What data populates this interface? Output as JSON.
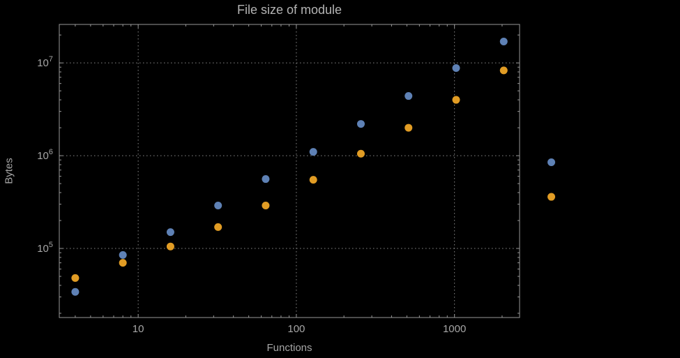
{
  "chart_data": {
    "type": "scatter",
    "scale": "log-log",
    "title": "File size of module",
    "xlabel": "Functions",
    "ylabel": "Bytes",
    "x": [
      4,
      8,
      16,
      32,
      64,
      128,
      256,
      512,
      1024,
      2048,
      4096
    ],
    "series": [
      {
        "name": "series-1-blue",
        "color": "#5e81b5",
        "values": [
          34000,
          85000,
          150000,
          290000,
          560000,
          1100000,
          2200000,
          4400000,
          8800000,
          17000000,
          850000
        ]
      },
      {
        "name": "series-2-orange",
        "color": "#e19c24",
        "values": [
          48000,
          70000,
          105000,
          170000,
          290000,
          550000,
          1050000,
          2000000,
          4000000,
          8300000,
          360000
        ]
      }
    ],
    "xticks": [
      10,
      100,
      1000
    ],
    "xtick_labels": [
      "10",
      "100",
      "1000"
    ],
    "yticks": [
      100000,
      1000000,
      10000000
    ],
    "ytick_labels": [
      "10^5",
      "10^6",
      "10^7"
    ],
    "xlim": [
      3.17,
      2580
    ],
    "ylim": [
      18000,
      26000000
    ],
    "grid": true,
    "legend": false
  },
  "style": {
    "background": "#000000",
    "frame_color": "#989898",
    "grid_color": "#8a8a8a",
    "tick_color": "#989898",
    "text_color": "#a6a6a6",
    "title_color": "#b4b4b4"
  }
}
